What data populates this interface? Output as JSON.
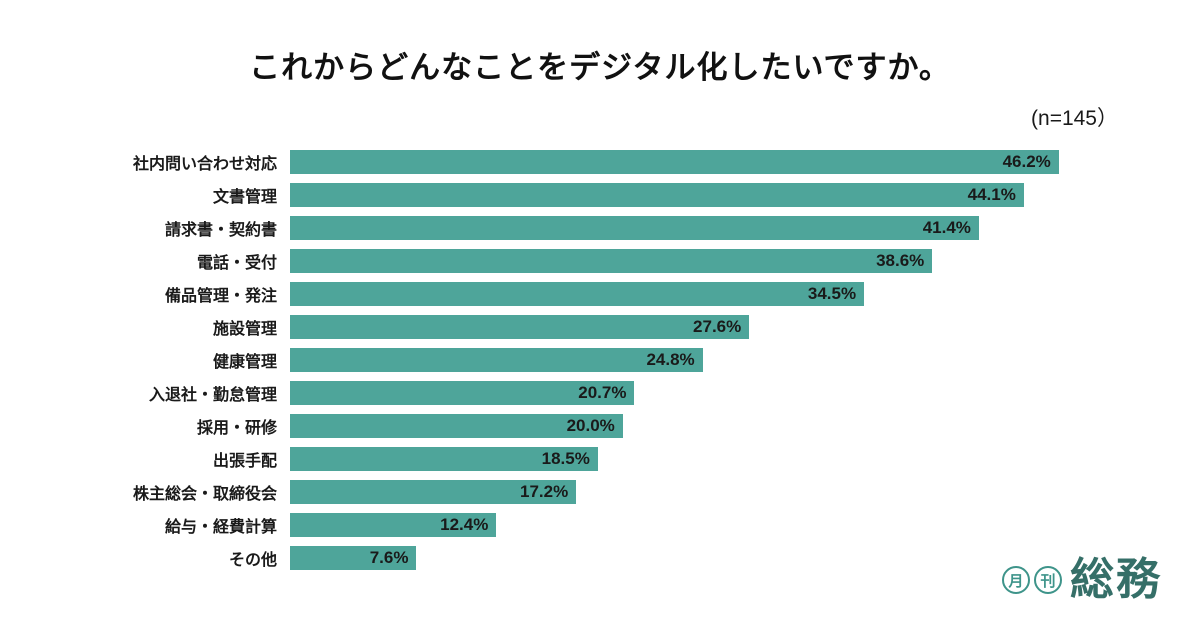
{
  "title": "これからどんなことをデジタル化したいですか。",
  "sample_size_label": "(n=145）",
  "colors": {
    "bar": "#4EA59A",
    "value_label": "#1A1A1A",
    "title": "#111111",
    "logo": "#3E948A",
    "logo_text": "#356F68"
  },
  "chart_data": {
    "type": "bar",
    "orientation": "horizontal",
    "title": "これからどんなことをデジタル化したいですか。",
    "sample_size": "n=145",
    "categories": [
      "社内問い合わせ対応",
      "文書管理",
      "請求書・契約書",
      "電話・受付",
      "備品管理・発注",
      "施設管理",
      "健康管理",
      "入退社・勤怠管理",
      "採用・研修",
      "出張手配",
      "株主総会・取締役会",
      "給与・経費計算",
      "その他"
    ],
    "values": [
      46.2,
      44.1,
      41.4,
      38.6,
      34.5,
      27.6,
      24.8,
      20.7,
      20.0,
      18.5,
      17.2,
      12.4,
      7.6
    ],
    "value_suffix": "%",
    "xlim": [
      0,
      50
    ],
    "xlabel": "",
    "ylabel": "",
    "grid": false,
    "legend": false,
    "value_labels_position": "inside-end"
  },
  "logo": {
    "circle_labels": [
      "月",
      "刊"
    ],
    "text": "総務"
  }
}
